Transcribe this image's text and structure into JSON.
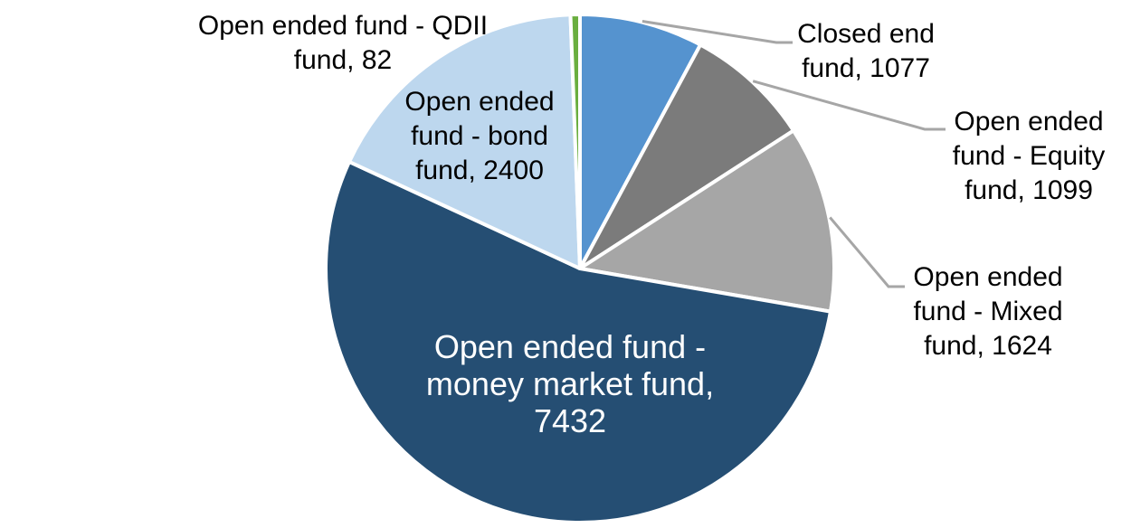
{
  "chart_data": {
    "type": "pie",
    "title": "",
    "background": "#FFFFFF",
    "direction": "clockwise",
    "start_angle_deg": 0,
    "border_color": "#FFFFFF",
    "leader_line_color": "#A6A6A6",
    "label_text_color": "#000000",
    "inside_label_text_color": "#FFFFFF",
    "legend": "none",
    "slices": [
      {
        "label": "Closed end fund",
        "value": 1077,
        "color": "#5593CF",
        "label_lines": [
          "Closed end",
          "fund, 1077"
        ],
        "label_placement": "outside-right-with-leader"
      },
      {
        "label": "Open ended fund - Equity fund",
        "value": 1099,
        "color": "#7B7B7B",
        "label_lines": [
          "Open ended",
          "fund - Equity",
          "fund, 1099"
        ],
        "label_placement": "outside-right-with-leader"
      },
      {
        "label": "Open ended fund - Mixed fund",
        "value": 1624,
        "color": "#A6A6A6",
        "label_lines": [
          "Open ended",
          "fund - Mixed",
          "fund, 1624"
        ],
        "label_placement": "outside-right-with-leader"
      },
      {
        "label": "Open ended fund - money market fund",
        "value": 7432,
        "color": "#254E73",
        "label_lines": [
          "Open ended fund -",
          "money market fund,",
          "7432"
        ],
        "label_placement": "inside"
      },
      {
        "label": "Open ended fund - bond fund",
        "value": 2400,
        "color": "#BDD7EE",
        "label_lines": [
          "Open ended",
          "fund - bond",
          "fund, 2400"
        ],
        "label_placement": "over-slice"
      },
      {
        "label": "Open ended fund - QDII fund",
        "value": 82,
        "color": "#6AAE3F",
        "label_lines": [
          "Open ended fund - QDII",
          "fund, 82"
        ],
        "label_placement": "outside-top-left"
      }
    ]
  }
}
